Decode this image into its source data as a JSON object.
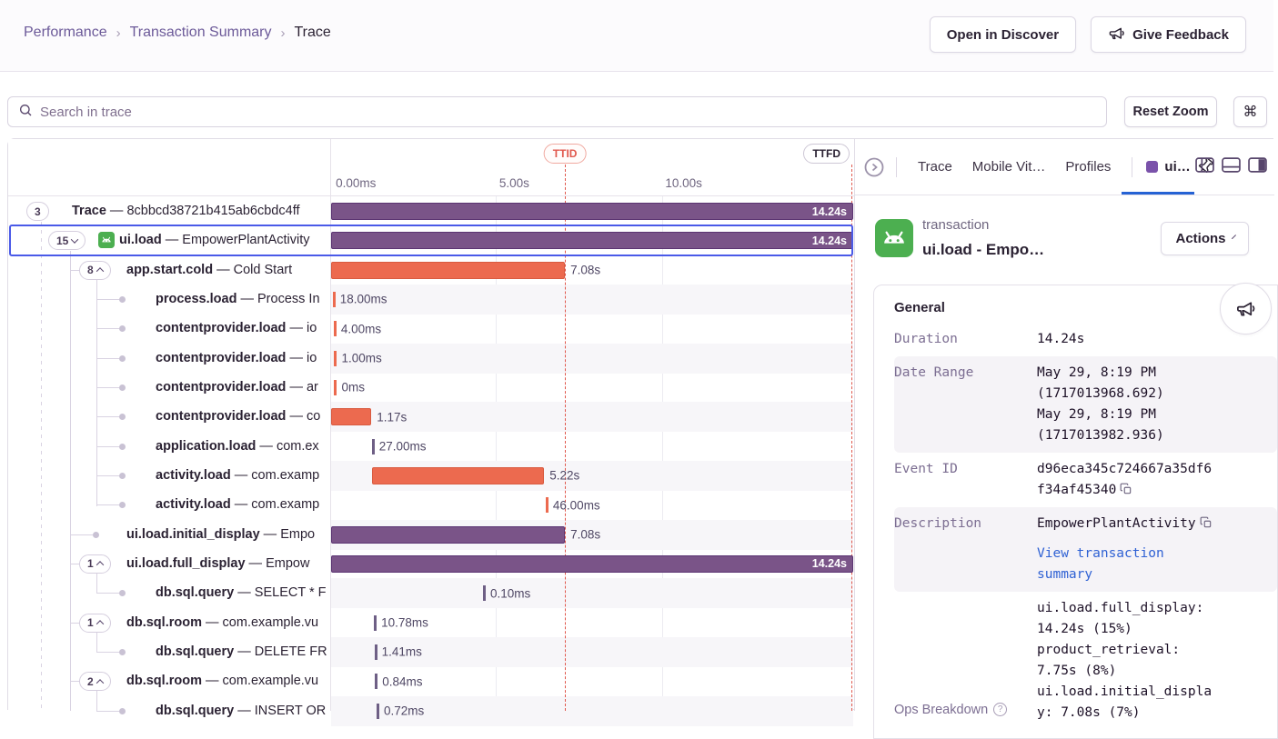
{
  "breadcrumb": {
    "items": [
      "Performance",
      "Transaction Summary",
      "Trace"
    ],
    "separator": "›"
  },
  "header": {
    "open_in_discover": "Open in Discover",
    "give_feedback": "Give Feedback"
  },
  "toolbar": {
    "search_placeholder": "Search in trace",
    "reset_zoom": "Reset Zoom",
    "shortcut_key": "⌘"
  },
  "separator": "—",
  "timeline": {
    "markers": [
      {
        "id": "ttid",
        "label": "TTID",
        "pct": 44.8,
        "style": "red"
      },
      {
        "id": "ttfd",
        "label": "TTFD",
        "pct": 99.7,
        "style": "plain"
      }
    ],
    "axis": [
      {
        "label": "0.00ms",
        "pct": 0.9,
        "grid_pct": 0
      },
      {
        "label": "5.00s",
        "pct": 32.2,
        "grid_pct": 31.6
      },
      {
        "label": "10.00s",
        "pct": 64.0,
        "grid_pct": 63.4
      }
    ]
  },
  "rows": [
    {
      "level": 0,
      "badge": "3",
      "name": "Trace",
      "desc": "8cbbcd38721b415ab6cbdc4ff",
      "bar": {
        "kind": "bar",
        "color": "purple",
        "start": 0,
        "width": 100,
        "label": "14.24s",
        "inside": true
      }
    },
    {
      "level": 1,
      "badge": "15",
      "chev": "down",
      "icon": true,
      "selected": true,
      "name": "ui.load",
      "desc": "EmpowerPlantActivity",
      "bar": {
        "kind": "bar",
        "color": "purple",
        "start": 0,
        "width": 100,
        "label": "14.24s",
        "inside": true
      }
    },
    {
      "level": 2,
      "badge": "8",
      "chev": "up",
      "name": "app.start.cold",
      "desc": "Cold Start",
      "bar": {
        "kind": "bar",
        "color": "orange",
        "start": 0,
        "width": 44.8,
        "label": "7.08s"
      }
    },
    {
      "level": 3,
      "dot": true,
      "name": "process.load",
      "desc": "Process In",
      "bar": {
        "kind": "tick",
        "color": "orange",
        "start": 0.3,
        "label": "18.00ms"
      }
    },
    {
      "level": 3,
      "dot": true,
      "name": "contentprovider.load",
      "desc": "io",
      "bar": {
        "kind": "tick",
        "color": "orange",
        "start": 0.5,
        "label": "4.00ms"
      }
    },
    {
      "level": 3,
      "dot": true,
      "name": "contentprovider.load",
      "desc": "io",
      "bar": {
        "kind": "tick",
        "color": "orange",
        "start": 0.6,
        "label": "1.00ms"
      }
    },
    {
      "level": 3,
      "dot": true,
      "name": "contentprovider.load",
      "desc": "ar",
      "bar": {
        "kind": "tick",
        "color": "orange",
        "start": 0.6,
        "label": "0ms"
      }
    },
    {
      "level": 3,
      "dot": true,
      "name": "contentprovider.load",
      "desc": "co",
      "bar": {
        "kind": "bar",
        "color": "orange",
        "start": 0,
        "width": 7.7,
        "label": "1.17s"
      }
    },
    {
      "level": 3,
      "dot": true,
      "name": "application.load",
      "desc": "com.ex",
      "bar": {
        "kind": "tick",
        "color": "gray",
        "start": 7.8,
        "label": "27.00ms"
      }
    },
    {
      "level": 3,
      "dot": true,
      "name": "activity.load",
      "desc": "com.examp",
      "bar": {
        "kind": "bar",
        "color": "orange",
        "start": 7.9,
        "width": 32.9,
        "label": "5.22s"
      }
    },
    {
      "level": 3,
      "dot": true,
      "name": "activity.load",
      "desc": "com.examp",
      "bar": {
        "kind": "tick",
        "color": "orange",
        "start": 41.1,
        "label": "46.00ms"
      }
    },
    {
      "level": 2,
      "dot": true,
      "name": "ui.load.initial_display",
      "desc": "Empo",
      "bar": {
        "kind": "bar",
        "color": "purple",
        "start": 0,
        "width": 44.8,
        "label": "7.08s"
      }
    },
    {
      "level": 2,
      "badge": "1",
      "chev": "up",
      "name": "ui.load.full_display",
      "desc": "Empow",
      "bar": {
        "kind": "bar",
        "color": "purple",
        "start": 0,
        "width": 100,
        "label": "14.24s",
        "inside": true
      }
    },
    {
      "level": 3,
      "dot": true,
      "name": "db.sql.query",
      "desc": "SELECT * F",
      "bar": {
        "kind": "tick",
        "color": "gray",
        "start": 29.1,
        "label": "0.10ms"
      }
    },
    {
      "level": 2,
      "badge": "1",
      "chev": "up",
      "name": "db.sql.room",
      "desc": "com.example.vu",
      "bar": {
        "kind": "tick",
        "color": "gray",
        "start": 8.2,
        "label": "10.78ms"
      }
    },
    {
      "level": 3,
      "dot": true,
      "name": "db.sql.query",
      "desc": "DELETE FR",
      "bar": {
        "kind": "tick",
        "color": "gray",
        "start": 8.3,
        "label": "1.41ms"
      }
    },
    {
      "level": 2,
      "badge": "2",
      "chev": "up",
      "name": "db.sql.room",
      "desc": "com.example.vu",
      "bar": {
        "kind": "tick",
        "color": "gray",
        "start": 8.4,
        "label": "0.84ms"
      }
    },
    {
      "level": 3,
      "dot": true,
      "name": "db.sql.query",
      "desc": "INSERT OR",
      "bar": {
        "kind": "tick",
        "color": "gray",
        "start": 8.7,
        "label": "0.72ms"
      }
    }
  ],
  "panel": {
    "tabs": [
      "Trace",
      "Mobile Vit…",
      "Profiles"
    ],
    "active_tab": "ui…",
    "transaction_label": "transaction",
    "transaction_title": "ui.load - Empo…",
    "actions": "Actions",
    "card": {
      "heading": "General",
      "rows": [
        {
          "label": "Duration",
          "lines": [
            "14.24s"
          ]
        },
        {
          "label": "Date Range",
          "shaded": true,
          "lines": [
            "May 29, 8:19 PM",
            "(1717013968.692)",
            "May 29, 8:19 PM",
            "(1717013982.936)"
          ]
        },
        {
          "label": "Event ID",
          "lines": [
            "d96eca345c724667a35df6",
            "f34af45340"
          ],
          "copy_line": 1
        },
        {
          "label": "Description",
          "shaded": true,
          "lines": [
            "EmpowerPlantActivity"
          ],
          "copy_line": 0,
          "link_lines": [
            "View transaction",
            "summary"
          ]
        },
        {
          "label": "Ops Breakdown",
          "help": true,
          "label_sans": true,
          "label_pad": 112,
          "lines": [
            "ui.load.full_display:",
            "14.24s (15%)",
            "product_retrieval:",
            "7.75s (8%)",
            "ui.load.initial_displa",
            "y: 7.08s (7%)"
          ]
        }
      ]
    }
  }
}
